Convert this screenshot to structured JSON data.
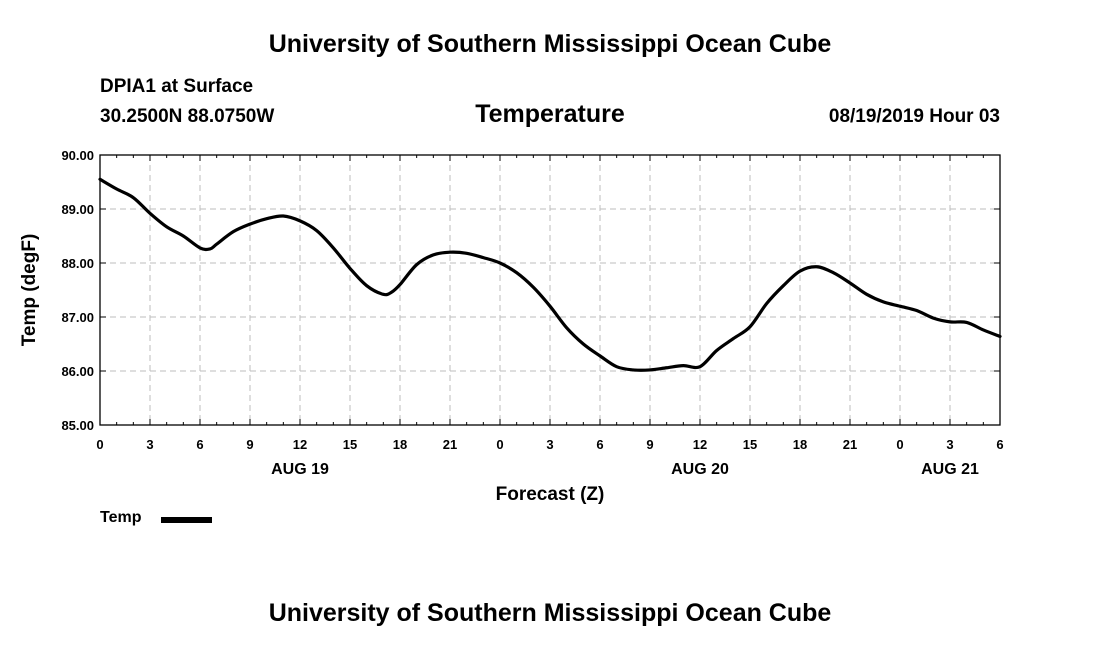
{
  "header": {
    "title": "University of Southern Mississippi Ocean Cube",
    "station": "DPIA1 at Surface",
    "coords": "30.2500N 88.0750W",
    "variable": "Temperature",
    "datetime": "08/19/2019 Hour 03"
  },
  "footer": {
    "title": "University of Southern Mississippi Ocean Cube"
  },
  "legend": {
    "label": "Temp",
    "color": "#000000"
  },
  "chart_data": {
    "type": "line",
    "title": "Temperature",
    "xlabel": "Forecast (Z)",
    "ylabel": "Temp (degF)",
    "ylim": [
      85.0,
      90.0
    ],
    "xlim": [
      0,
      54
    ],
    "grid": true,
    "legend_position": "bottom-left",
    "y_ticks": [
      "85.00",
      "86.00",
      "87.00",
      "88.00",
      "89.00",
      "90.00"
    ],
    "y_tick_values": [
      85,
      86,
      87,
      88,
      89,
      90
    ],
    "x_tick_labels": [
      "0",
      "3",
      "6",
      "9",
      "12",
      "15",
      "18",
      "21",
      "0",
      "3",
      "6",
      "9",
      "12",
      "15",
      "18",
      "21",
      "0",
      "3",
      "6"
    ],
    "x_tick_hours": [
      0,
      3,
      6,
      9,
      12,
      15,
      18,
      21,
      24,
      27,
      30,
      33,
      36,
      39,
      42,
      45,
      48,
      51,
      54
    ],
    "day_labels": [
      {
        "label": "AUG 19",
        "hour": 12
      },
      {
        "label": "AUG 20",
        "hour": 36
      },
      {
        "label": "AUG 21",
        "hour": 51
      }
    ],
    "series": [
      {
        "name": "Temp",
        "color": "#000000",
        "x": [
          0,
          1,
          2,
          3,
          4,
          5,
          6,
          6.6,
          7,
          8,
          9,
          10,
          11,
          12,
          13,
          14,
          15,
          16,
          17,
          17.5,
          18,
          19,
          20,
          21,
          22,
          23,
          24,
          25,
          26,
          27,
          28,
          29,
          30,
          31,
          32,
          33,
          34,
          35,
          36,
          37,
          38,
          39,
          40,
          41,
          42,
          43,
          44,
          45,
          46,
          47,
          48,
          49,
          50,
          51,
          52,
          53,
          54
        ],
        "values": [
          89.55,
          89.37,
          89.21,
          88.92,
          88.67,
          88.5,
          88.28,
          88.26,
          88.35,
          88.58,
          88.72,
          88.82,
          88.87,
          88.78,
          88.6,
          88.28,
          87.9,
          87.58,
          87.42,
          87.46,
          87.6,
          87.97,
          88.15,
          88.2,
          88.18,
          88.1,
          88.0,
          87.82,
          87.55,
          87.2,
          86.8,
          86.5,
          86.28,
          86.08,
          86.02,
          86.02,
          86.06,
          86.1,
          86.08,
          86.38,
          86.6,
          86.82,
          87.25,
          87.58,
          87.85,
          87.93,
          87.82,
          87.63,
          87.42,
          87.28,
          87.2,
          87.12,
          86.98,
          86.91,
          86.9,
          86.76,
          86.64
        ]
      }
    ]
  }
}
